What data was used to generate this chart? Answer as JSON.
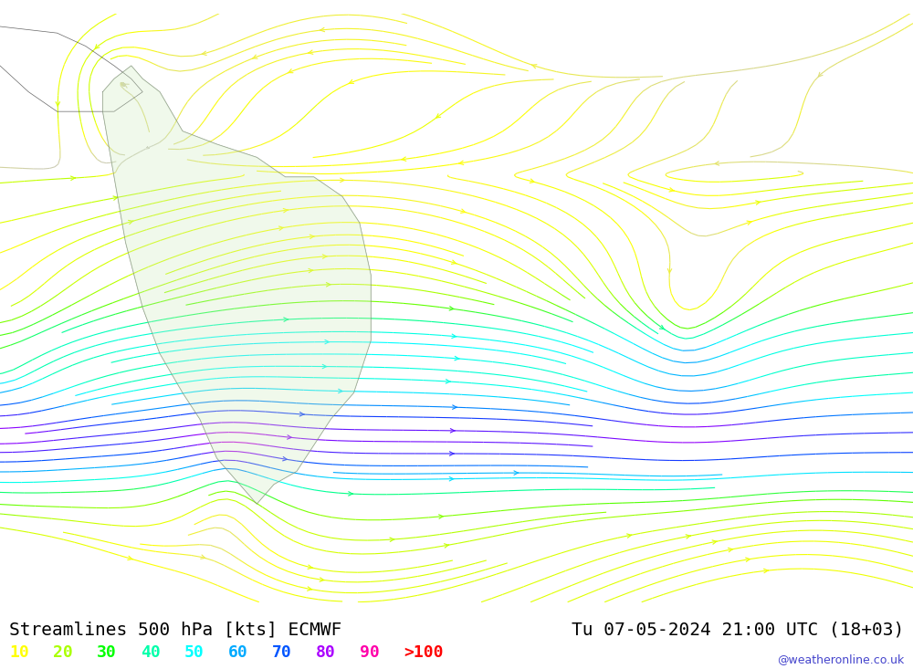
{
  "title_left": "Streamlines 500 hPa [kts] ECMWF",
  "title_right": "Tu 07-05-2024 21:00 UTC (18+03)",
  "watermark": "@weatheronline.co.uk",
  "legend_values": [
    "10",
    "20",
    "30",
    "40",
    "50",
    "60",
    "70",
    "80",
    "90",
    ">100"
  ],
  "legend_colors": [
    "#ffff00",
    "#aaff00",
    "#00ff00",
    "#00ffaa",
    "#00ffff",
    "#00aaff",
    "#0055ff",
    "#aa00ff",
    "#ff00aa",
    "#ff0000"
  ],
  "background_color": "#ffffff",
  "plot_bg_color": "#e8e8e8",
  "title_fontsize": 14,
  "legend_fontsize": 13,
  "watermark_color": "#4444cc"
}
